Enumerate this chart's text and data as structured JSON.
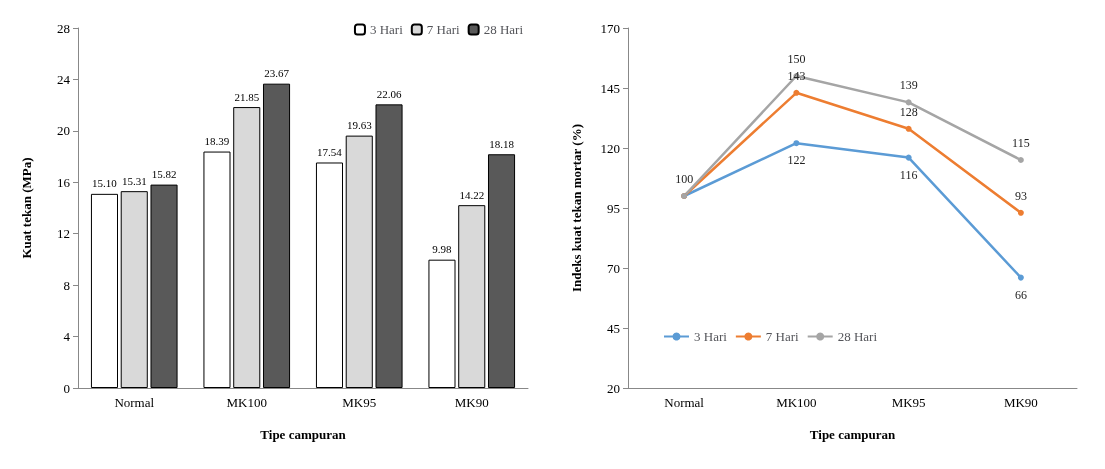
{
  "chart_data": [
    {
      "type": "bar",
      "xlabel": "Tipe campuran",
      "ylabel": "Kuat tekan (MPa)",
      "categories": [
        "Normal",
        "MK100",
        "MK95",
        "MK90"
      ],
      "series": [
        {
          "name": "3 Hari",
          "color": "#ffffff",
          "values": [
            15.1,
            18.39,
            17.54,
            9.98
          ],
          "value_labels": [
            "15.10",
            "18.39",
            "17.54",
            "9.98"
          ]
        },
        {
          "name": "7 Hari",
          "color": "#d9d9d9",
          "values": [
            15.31,
            21.85,
            19.63,
            14.22
          ],
          "value_labels": [
            "15.31",
            "21.85",
            "19.63",
            "14.22"
          ]
        },
        {
          "name": "28 Hari",
          "color": "#595959",
          "values": [
            15.82,
            23.67,
            22.06,
            18.18
          ],
          "value_labels": [
            "15.82",
            "23.67",
            "22.06",
            "18.18"
          ]
        }
      ],
      "ylim": [
        0,
        28
      ],
      "yticks": [
        0,
        4,
        8,
        12,
        16,
        20,
        24,
        28
      ],
      "grid": false,
      "legend": "top right"
    },
    {
      "type": "line",
      "xlabel": "Tipe campuran",
      "ylabel": "Indeks kuat tekan mortar (%)",
      "categories": [
        "Normal",
        "MK100",
        "MK95",
        "MK90"
      ],
      "series": [
        {
          "name": "3 Hari",
          "color": "#5b9bd5",
          "values": [
            100,
            122,
            116,
            66
          ],
          "value_labels": [
            null,
            "122",
            "116",
            "66"
          ]
        },
        {
          "name": "7 Hari",
          "color": "#ed7d31",
          "values": [
            100,
            143,
            128,
            93
          ],
          "value_labels": [
            "100",
            "143",
            "128",
            "93"
          ]
        },
        {
          "name": "28 Hari",
          "color": "#a5a5a5",
          "values": [
            100,
            150,
            139,
            115
          ],
          "value_labels": [
            null,
            "150",
            "139",
            "115"
          ]
        }
      ],
      "ylim": [
        20,
        170
      ],
      "yticks": [
        20,
        45,
        70,
        95,
        120,
        145,
        170
      ],
      "grid": false,
      "legend": "bottom left",
      "marker": "circle"
    }
  ]
}
